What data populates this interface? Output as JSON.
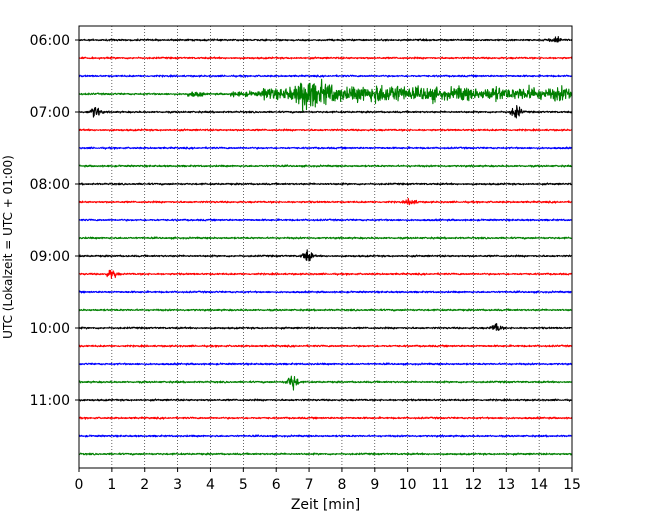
{
  "chart_data": {
    "type": "line",
    "subtype": "helicorder",
    "xlabel": "Zeit  [min]",
    "ylabel": "UTC (Lokalzeit = UTC + 01:00)",
    "xlim": [
      0,
      15
    ],
    "x_ticks": [
      "0",
      "1",
      "2",
      "3",
      "4",
      "5",
      "6",
      "7",
      "8",
      "9",
      "10",
      "11",
      "12",
      "13",
      "14",
      "15"
    ],
    "y_tick_labels": [
      "06:00",
      "07:00",
      "08:00",
      "09:00",
      "10:00",
      "11:00"
    ],
    "trace_start_times": [
      "06:00",
      "06:15",
      "06:30",
      "06:45",
      "07:00",
      "07:15",
      "07:30",
      "07:45",
      "08:00",
      "08:15",
      "08:30",
      "08:45",
      "09:00",
      "09:15",
      "09:30",
      "09:45",
      "10:00",
      "10:15",
      "10:30",
      "10:45",
      "11:00",
      "11:15",
      "11:30",
      "11:45"
    ],
    "trace_colors": [
      "#000000",
      "#ff0000",
      "#0000ff",
      "#008000"
    ],
    "vertical_grid": "dotted",
    "events": [
      {
        "trace": "06:00",
        "minute": 14.5,
        "amplitude": 0.5
      },
      {
        "trace": "06:45",
        "minute": 6.8,
        "amplitude": 4.5
      },
      {
        "trace": "06:45",
        "minute": 9.0,
        "amplitude": 1.8
      },
      {
        "trace": "07:00",
        "minute": 0.5,
        "amplitude": 0.6
      },
      {
        "trace": "07:00",
        "minute": 13.3,
        "amplitude": 0.7
      },
      {
        "trace": "08:15",
        "minute": 10.1,
        "amplitude": 0.35
      },
      {
        "trace": "09:00",
        "minute": 6.95,
        "amplitude": 0.6
      },
      {
        "trace": "09:15",
        "minute": 1.0,
        "amplitude": 0.5
      },
      {
        "trace": "10:00",
        "minute": 12.7,
        "amplitude": 0.45
      },
      {
        "trace": "10:45",
        "minute": 6.5,
        "amplitude": 0.9
      }
    ]
  }
}
